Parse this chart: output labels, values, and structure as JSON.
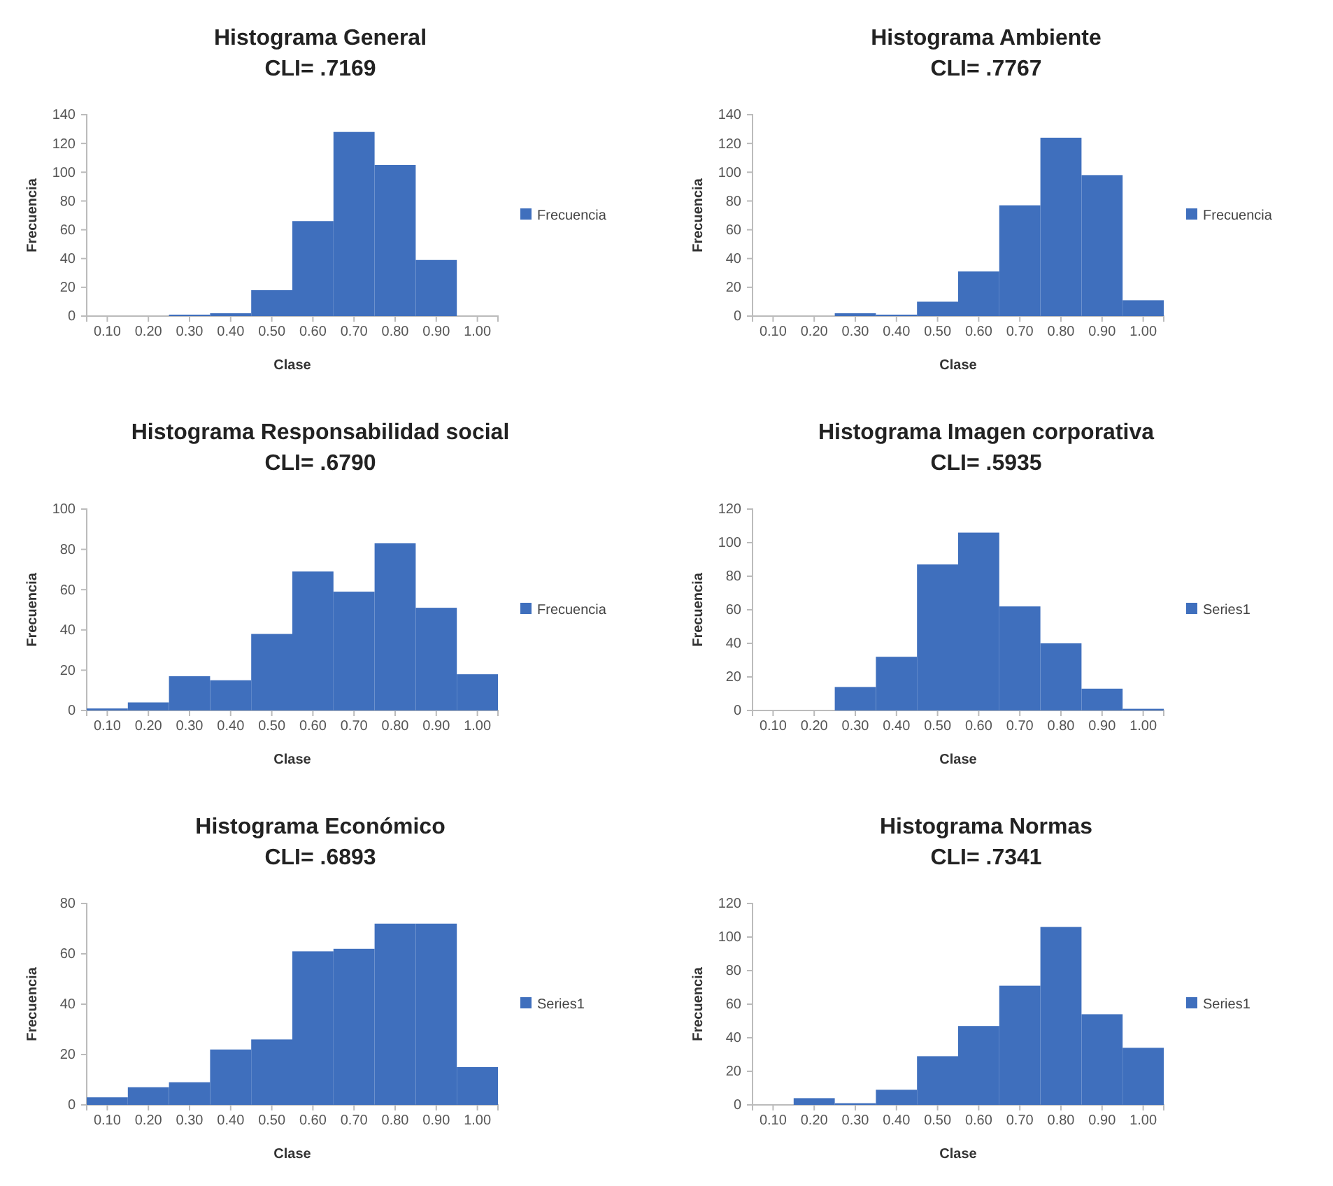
{
  "chart_data": [
    {
      "type": "bar",
      "title": "Histograma General",
      "subtitle": "CLI= .7169",
      "xlabel": "Clase",
      "ylabel": "Frecuencia",
      "categories": [
        "0.10",
        "0.20",
        "0.30",
        "0.40",
        "0.50",
        "0.60",
        "0.70",
        "0.80",
        "0.90",
        "1.00"
      ],
      "series": [
        {
          "name": "Frecuencia",
          "color": "#3f6fbd",
          "values": [
            0,
            0,
            1,
            2,
            18,
            66,
            128,
            105,
            39,
            0
          ]
        }
      ],
      "ylim": [
        0,
        140
      ],
      "yticks": [
        0,
        20,
        40,
        60,
        80,
        100,
        120,
        140
      ],
      "legend": "right"
    },
    {
      "type": "bar",
      "title": "Histograma Ambiente",
      "subtitle": "CLI= .7767",
      "xlabel": "Clase",
      "ylabel": "Frecuencia",
      "categories": [
        "0.10",
        "0.20",
        "0.30",
        "0.40",
        "0.50",
        "0.60",
        "0.70",
        "0.80",
        "0.90",
        "1.00"
      ],
      "series": [
        {
          "name": "Frecuencia",
          "color": "#3f6fbd",
          "values": [
            0,
            0,
            2,
            1,
            10,
            31,
            77,
            124,
            98,
            11
          ]
        }
      ],
      "ylim": [
        0,
        140
      ],
      "yticks": [
        0,
        20,
        40,
        60,
        80,
        100,
        120,
        140
      ],
      "legend": "right"
    },
    {
      "type": "bar",
      "title": "Histograma Responsabilidad social",
      "subtitle": "CLI= .6790",
      "xlabel": "Clase",
      "ylabel": "Frecuencia",
      "categories": [
        "0.10",
        "0.20",
        "0.30",
        "0.40",
        "0.50",
        "0.60",
        "0.70",
        "0.80",
        "0.90",
        "1.00"
      ],
      "series": [
        {
          "name": "Frecuencia",
          "color": "#3f6fbd",
          "values": [
            1,
            4,
            17,
            15,
            38,
            69,
            59,
            83,
            51,
            18
          ]
        }
      ],
      "ylim": [
        0,
        100
      ],
      "yticks": [
        0,
        20,
        40,
        60,
        80,
        100
      ],
      "legend": "right"
    },
    {
      "type": "bar",
      "title": "Histograma Imagen corporativa",
      "subtitle": "CLI= .5935",
      "xlabel": "Clase",
      "ylabel": "Frecuencia",
      "categories": [
        "0.10",
        "0.20",
        "0.30",
        "0.40",
        "0.50",
        "0.60",
        "0.70",
        "0.80",
        "0.90",
        "1.00"
      ],
      "series": [
        {
          "name": "Series1",
          "color": "#3f6fbd",
          "values": [
            0,
            0,
            14,
            32,
            87,
            106,
            62,
            40,
            13,
            1
          ]
        }
      ],
      "ylim": [
        0,
        120
      ],
      "yticks": [
        0,
        20,
        40,
        60,
        80,
        100,
        120
      ],
      "legend": "right"
    },
    {
      "type": "bar",
      "title": "Histograma Económico",
      "subtitle": "CLI= .6893",
      "xlabel": "Clase",
      "ylabel": "Frecuencia",
      "categories": [
        "0.10",
        "0.20",
        "0.30",
        "0.40",
        "0.50",
        "0.60",
        "0.70",
        "0.80",
        "0.90",
        "1.00"
      ],
      "series": [
        {
          "name": "Series1",
          "color": "#3f6fbd",
          "values": [
            3,
            7,
            9,
            22,
            26,
            61,
            62,
            72,
            72,
            15
          ]
        }
      ],
      "ylim": [
        0,
        80
      ],
      "yticks": [
        0,
        20,
        40,
        60,
        80
      ],
      "legend": "right"
    },
    {
      "type": "bar",
      "title": "Histograma Normas",
      "subtitle": "CLI= .7341",
      "xlabel": "Clase",
      "ylabel": "Frecuencia",
      "categories": [
        "0.10",
        "0.20",
        "0.30",
        "0.40",
        "0.50",
        "0.60",
        "0.70",
        "0.80",
        "0.90",
        "1.00"
      ],
      "series": [
        {
          "name": "Series1",
          "color": "#3f6fbd",
          "values": [
            0,
            4,
            1,
            9,
            29,
            47,
            71,
            106,
            54,
            34
          ]
        }
      ],
      "ylim": [
        0,
        120
      ],
      "yticks": [
        0,
        20,
        40,
        60,
        80,
        100,
        120
      ],
      "legend": "right"
    }
  ]
}
